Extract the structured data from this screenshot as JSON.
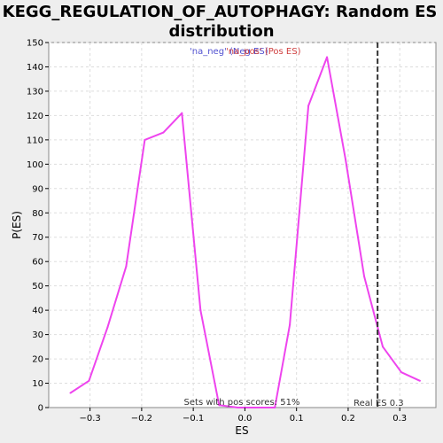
{
  "chart_data": {
    "type": "line",
    "title_lines": [
      "KEGG_REGULATION_OF_AUTOPHAGY: Random ES",
      "distribution"
    ],
    "xlabel": "ES",
    "ylabel": "P(ES)",
    "xlim": [
      -0.38,
      0.37
    ],
    "ylim": [
      0,
      150
    ],
    "xticks": [
      -0.3,
      -0.2,
      -0.1,
      0.0,
      0.1,
      0.2,
      0.3
    ],
    "xtick_labels": [
      "−0.3",
      "−0.2",
      "−0.1",
      "0.0",
      "0.1",
      "0.2",
      "0.3"
    ],
    "yticks": [
      0,
      10,
      20,
      30,
      40,
      50,
      60,
      70,
      80,
      90,
      100,
      110,
      120,
      130,
      140,
      150
    ],
    "grid": true,
    "legend": [
      {
        "label": "'na_neg' (Neg ES)",
        "color": "#5050d0"
      },
      {
        "label": "'na_pos' (Pos ES)",
        "color": "#d04040"
      }
    ],
    "series": [
      {
        "color": "#ee44ee",
        "x": [
          -0.338,
          -0.302,
          -0.266,
          -0.23,
          -0.194,
          -0.158,
          -0.122,
          -0.086,
          -0.05,
          -0.014,
          0.022,
          0.058,
          0.087,
          0.123,
          0.159,
          0.195,
          0.231,
          0.267,
          0.303,
          0.339
        ],
        "y": [
          6,
          11,
          33,
          58,
          110,
          113,
          121,
          40,
          1,
          0,
          0,
          0,
          34,
          124,
          144,
          102,
          54,
          25,
          14.5,
          11
        ]
      }
    ],
    "real_es": 0.257,
    "real_es_label": "Real ES 0.3",
    "pos_scores_label": "Sets with pos scores: 51%"
  }
}
